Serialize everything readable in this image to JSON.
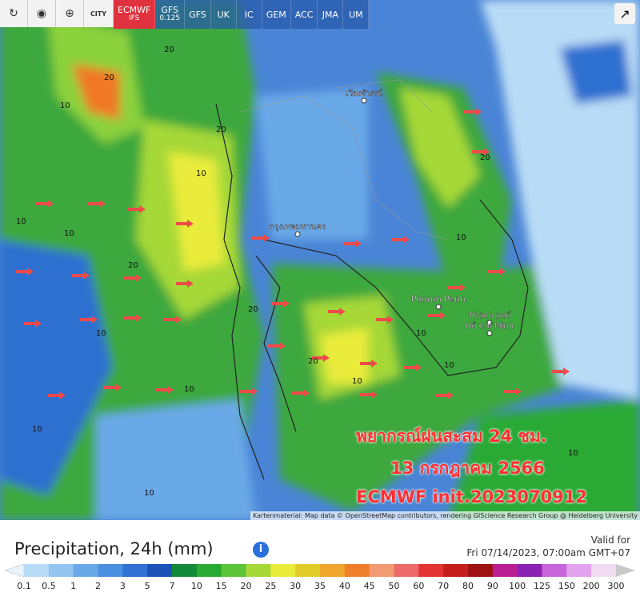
{
  "toolbar": {
    "city_button": "CITY",
    "models": [
      {
        "name": "ECMWF",
        "sub": "IFS",
        "active": true
      },
      {
        "name": "GFS",
        "sub": "0.125",
        "active": false
      },
      {
        "name": "GFS",
        "sub": null,
        "active": false
      },
      {
        "name": "UK",
        "sub": null,
        "active": false
      },
      {
        "name": "IC",
        "sub": null,
        "active": false
      },
      {
        "name": "GEM",
        "sub": null,
        "active": false
      },
      {
        "name": "ACC",
        "sub": null,
        "active": false
      },
      {
        "name": "JMA",
        "sub": null,
        "active": false
      },
      {
        "name": "UM",
        "sub": null,
        "active": false
      }
    ]
  },
  "map": {
    "place_labels": [
      "Phnom Penh",
      "Thành phố",
      "Hồ Chí Minh",
      "กรุงเทพมหานคร",
      "เวียงจันทน์"
    ],
    "contour_labels": [
      "20",
      "20",
      "10",
      "20",
      "10",
      "10",
      "10",
      "20",
      "10",
      "10",
      "10",
      "20",
      "10",
      "10",
      "10",
      "20",
      "10",
      "20",
      "10",
      "10"
    ],
    "overlay": [
      "พยากรณ์ฝนสะสม 24 ชม.",
      "13 กรกฎาคม 2566",
      "ECMWF init.2023070912"
    ],
    "attribution": "Kartenmaterial: Map data © OpenStreetMap contributors, rendering GIScience Research Group @ Heidelberg University"
  },
  "legend": {
    "title": "Precipitation, 24h (mm)",
    "valid_label": "Valid for",
    "valid_time": "Fri 07/14/2023, 07:00am GMT+07",
    "values": [
      0.1,
      0.5,
      1,
      2,
      3,
      5,
      7,
      10,
      15,
      20,
      25,
      30,
      35,
      40,
      45,
      50,
      60,
      70,
      80,
      90,
      100,
      125,
      150,
      200,
      300
    ],
    "colors": [
      "#b9dcf6",
      "#93c5f0",
      "#6aa9e8",
      "#4b8fe0",
      "#3272d2",
      "#1c52b8",
      "#13893a",
      "#2aaa34",
      "#5cc43a",
      "#a6d838",
      "#eaec3a",
      "#e2cc2a",
      "#f0a52c",
      "#ef7f2b",
      "#f29a72",
      "#ee6a6a",
      "#e33333",
      "#c61d1d",
      "#9e1212",
      "#ba1f92",
      "#8b22b3",
      "#c766da",
      "#e3a2ee",
      "#f1dcf1"
    ],
    "low_color": "#e8f2fb",
    "high_color": "#c8c8c8"
  }
}
